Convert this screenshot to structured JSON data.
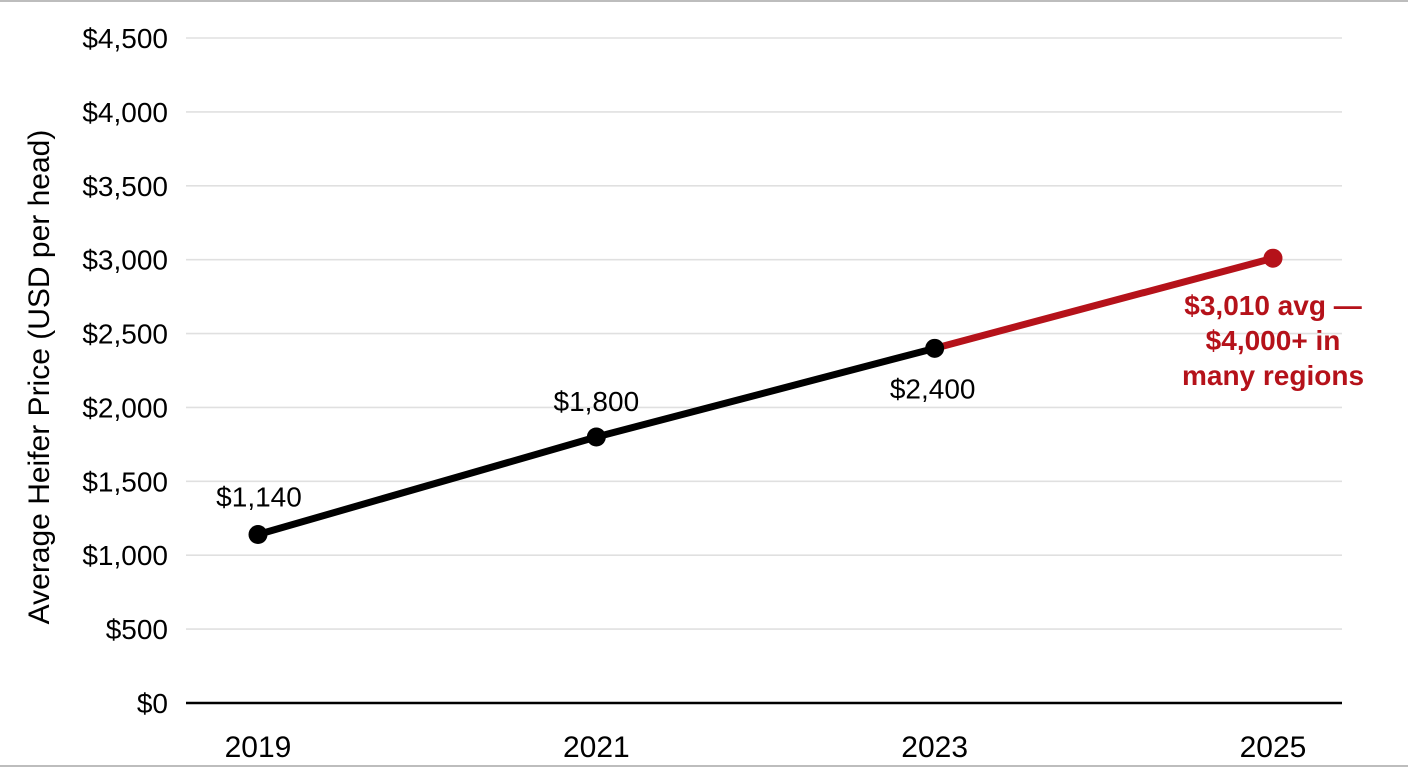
{
  "chart_data": {
    "type": "line",
    "title": "",
    "xlabel": "",
    "ylabel": "Average Heifer Price (USD per head)",
    "categories": [
      "2019",
      "2021",
      "2023",
      "2025"
    ],
    "series": [
      {
        "name": "Average Heifer Price (USD per head)",
        "values": [
          1140,
          1800,
          2400,
          3010
        ],
        "point_colors": [
          "#000000",
          "#000000",
          "#000000",
          "#B5121A"
        ],
        "segment_colors": [
          "#000000",
          "#000000",
          "#B5121A"
        ]
      }
    ],
    "point_labels": [
      "$1,140",
      "$1,800",
      "$2,400",
      ""
    ],
    "ylim": [
      0,
      4500
    ],
    "ytick_step": 500,
    "yticks": [
      {
        "value": 0,
        "label": "$0"
      },
      {
        "value": 500,
        "label": "$500"
      },
      {
        "value": 1000,
        "label": "$1,000"
      },
      {
        "value": 1500,
        "label": "$1,500"
      },
      {
        "value": 2000,
        "label": "$2,000"
      },
      {
        "value": 2500,
        "label": "$2,500"
      },
      {
        "value": 3000,
        "label": "$3,000"
      },
      {
        "value": 3500,
        "label": "$3,500"
      },
      {
        "value": 4000,
        "label": "$4,000"
      },
      {
        "value": 4500,
        "label": "$4,500"
      }
    ],
    "grid": "horizontal",
    "legend": "none",
    "annotation": {
      "lines": [
        "$3,010 avg —",
        "$4,000+ in",
        "many regions"
      ],
      "color": "#B5121A"
    },
    "colors": {
      "line": "#000000",
      "forecast": "#B5121A",
      "gridline": "#E0E0E0",
      "axis": "#000000",
      "text": "#000000",
      "background": "#FFFFFF"
    }
  }
}
